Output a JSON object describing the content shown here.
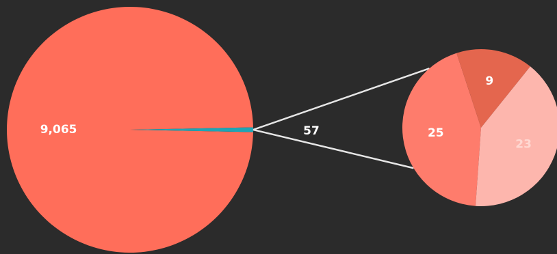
{
  "chart_data": [
    {
      "type": "pie",
      "slices": [
        {
          "label": "9,065",
          "value": 9065,
          "color": "#ff6e5a"
        },
        {
          "label": "57",
          "value": 57,
          "color": "#20a4b4"
        }
      ],
      "exploded_slice": "57"
    },
    {
      "type": "pie",
      "slices": [
        {
          "label": "25",
          "value": 25,
          "color": "#fe7c6c"
        },
        {
          "label": "9",
          "value": 9,
          "color": "#e4664e"
        },
        {
          "label": "23",
          "value": 23,
          "color": "#fdb6ad"
        }
      ],
      "total": 57
    }
  ],
  "colors": {
    "background": "#2b2b2b",
    "connector": "#e6e6e6",
    "label_light": "#ffffff",
    "label_dark_slice": "#ffd8d2"
  }
}
